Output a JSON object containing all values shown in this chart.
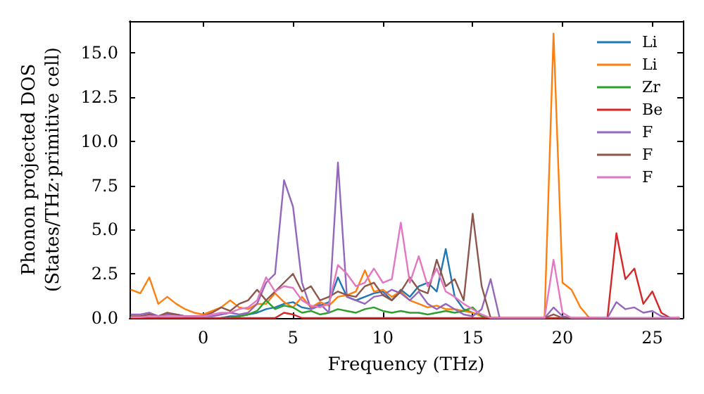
{
  "chart_data": {
    "type": "line",
    "xlabel": "Frequency (THz)",
    "ylabel": "Phonon projected DOS\n(States/THz·primitive cell)",
    "x": [
      -4,
      -3.5,
      -3,
      -2.5,
      -2,
      -1.5,
      -1,
      -0.5,
      0,
      0.5,
      1,
      1.5,
      2,
      2.5,
      3,
      3.5,
      4,
      4.5,
      5,
      5.5,
      6,
      6.5,
      7,
      7.5,
      8,
      8.5,
      9,
      9.5,
      10,
      10.5,
      11,
      11.5,
      12,
      12.5,
      13,
      13.5,
      14,
      14.5,
      15,
      15.5,
      16,
      16.5,
      17,
      17.5,
      18,
      18.5,
      19,
      19.5,
      20,
      20.5,
      21,
      21.5,
      22,
      22.5,
      23,
      23.5,
      24,
      24.5,
      25,
      25.5,
      26,
      26.5
    ],
    "xlim": [
      -4.1,
      26.7
    ],
    "xticks": [
      0,
      5,
      10,
      15,
      20,
      25
    ],
    "ylim": [
      0,
      16.8
    ],
    "yticks": [
      {
        "value": 0,
        "label": "0.0"
      },
      {
        "value": 2.5,
        "label": "2.5"
      },
      {
        "value": 5,
        "label": "5.0"
      },
      {
        "value": 7.5,
        "label": "7.5"
      },
      {
        "value": 10,
        "label": "10.0"
      },
      {
        "value": 12.5,
        "label": "12.5"
      },
      {
        "value": 15,
        "label": "15.0"
      }
    ],
    "legend": "top right",
    "grid": false,
    "series": [
      {
        "name": "Li",
        "color": "#1f77b4",
        "values": [
          null,
          null,
          null,
          null,
          null,
          null,
          null,
          null,
          null,
          null,
          0,
          0.1,
          0.1,
          0.2,
          0.3,
          0.5,
          0.6,
          0.8,
          0.9,
          0.6,
          0.5,
          0.7,
          0.9,
          2.3,
          1.2,
          1.0,
          1.2,
          1.4,
          1.5,
          1.0,
          1.6,
          1.2,
          1.8,
          2.0,
          1.5,
          3.9,
          1.2,
          0.5,
          0.3,
          null,
          null,
          null,
          null,
          null,
          null,
          null,
          null,
          null,
          null,
          null,
          null,
          null,
          null,
          null,
          null,
          null,
          null,
          null,
          null,
          null,
          null,
          null
        ]
      },
      {
        "name": "Li",
        "color": "#ff7f0e",
        "values": [
          1.6,
          1.4,
          2.3,
          0.8,
          1.2,
          0.8,
          0.5,
          0.3,
          0.2,
          0.4,
          0.6,
          1.0,
          0.6,
          0.5,
          0.8,
          0.8,
          1.4,
          0.9,
          0.6,
          1.2,
          0.6,
          0.9,
          0.7,
          1.2,
          1.3,
          1.5,
          2.7,
          1.5,
          1.6,
          1.2,
          1.5,
          1.0,
          0.8,
          0.6,
          0.7,
          0.5,
          0.5,
          0.4,
          0.3,
          0.1,
          0,
          0,
          0,
          0,
          0,
          0,
          0,
          16.1,
          2.0,
          1.6,
          0.6,
          0,
          0,
          null,
          null,
          null,
          null,
          null,
          null,
          null,
          null,
          null
        ]
      },
      {
        "name": "Zr",
        "color": "#2ca02c",
        "values": [
          null,
          null,
          null,
          null,
          null,
          null,
          null,
          null,
          null,
          null,
          0,
          0,
          0.1,
          0.2,
          0.4,
          1.0,
          0.5,
          0.7,
          0.6,
          0.3,
          0.4,
          0.2,
          0.3,
          0.5,
          0.4,
          0.3,
          0.5,
          0.6,
          0.4,
          0.3,
          0.4,
          0.3,
          0.3,
          0.2,
          0.3,
          0.4,
          0.3,
          0.4,
          0.6,
          0.1,
          0,
          0,
          null,
          null,
          null,
          null,
          null,
          null,
          null,
          null,
          null,
          null,
          null,
          null,
          null,
          null,
          null,
          null,
          null,
          null,
          null,
          null
        ]
      },
      {
        "name": "Be",
        "color": "#d62728",
        "values": [
          0,
          0,
          0,
          0,
          0,
          0,
          0,
          0,
          0,
          0,
          0,
          0,
          0,
          0,
          0,
          0,
          0,
          0.3,
          0.2,
          0,
          0,
          0,
          0,
          0,
          0,
          0,
          0,
          0,
          0,
          0,
          0,
          0,
          0,
          0,
          0,
          0,
          0,
          0,
          0,
          0,
          0,
          0,
          0,
          0,
          0,
          0,
          0,
          0,
          0,
          0,
          0,
          0,
          0,
          0,
          4.8,
          2.2,
          2.8,
          0.8,
          1.5,
          0.3,
          0,
          0
        ]
      },
      {
        "name": "F",
        "color": "#9467bd",
        "values": [
          0.2,
          0.2,
          0.3,
          0.1,
          0.2,
          0.2,
          0.1,
          0.1,
          0.1,
          0.1,
          0.2,
          0.3,
          0.2,
          0.3,
          0.8,
          2.0,
          2.5,
          7.8,
          6.3,
          2.0,
          0.5,
          0.8,
          0.3,
          8.8,
          1.2,
          1.0,
          0.8,
          1.2,
          1.3,
          1.6,
          1.4,
          1.0,
          1.5,
          0.8,
          0.5,
          0.8,
          0.5,
          0.2,
          0.1,
          0.5,
          2.2,
          0,
          0,
          0,
          0,
          0,
          0,
          0.6,
          0.1,
          0,
          0,
          0,
          0,
          0,
          0.9,
          0.5,
          0.6,
          0.3,
          0.4,
          0.1,
          0,
          0
        ]
      },
      {
        "name": "F",
        "color": "#8c564b",
        "values": [
          0.1,
          0.1,
          0.2,
          0.1,
          0.3,
          0.2,
          0.1,
          0.1,
          0.1,
          0.3,
          0.6,
          0.4,
          0.8,
          1.0,
          1.6,
          1.0,
          1.5,
          2.0,
          2.5,
          1.5,
          1.8,
          1.0,
          1.2,
          1.5,
          1.3,
          1.2,
          1.8,
          2.0,
          1.3,
          1.0,
          1.5,
          2.3,
          1.6,
          1.4,
          3.3,
          1.8,
          2.2,
          1.0,
          5.9,
          1.8,
          0,
          0,
          0,
          0,
          0,
          0,
          0,
          0.2,
          0,
          0,
          0,
          0,
          0,
          0,
          0,
          0,
          0,
          0,
          0,
          0,
          0,
          0
        ]
      },
      {
        "name": "F",
        "color": "#e377c2",
        "values": [
          0.05,
          0.05,
          0.1,
          0.1,
          0.1,
          0.1,
          0.1,
          0.1,
          0.1,
          0.2,
          0.3,
          0.3,
          0.5,
          0.6,
          1.0,
          2.3,
          1.5,
          1.8,
          1.7,
          1.0,
          0.7,
          0.6,
          0.8,
          3.0,
          2.5,
          1.8,
          2.0,
          2.8,
          2.0,
          2.2,
          5.4,
          2.0,
          3.5,
          1.8,
          2.8,
          1.5,
          1.2,
          0.8,
          0.5,
          0.2,
          0,
          0,
          0,
          0,
          0,
          0,
          0,
          3.3,
          0.3,
          0,
          0,
          0,
          0,
          0,
          0,
          0,
          0,
          0,
          0,
          0,
          0,
          0
        ]
      }
    ]
  }
}
